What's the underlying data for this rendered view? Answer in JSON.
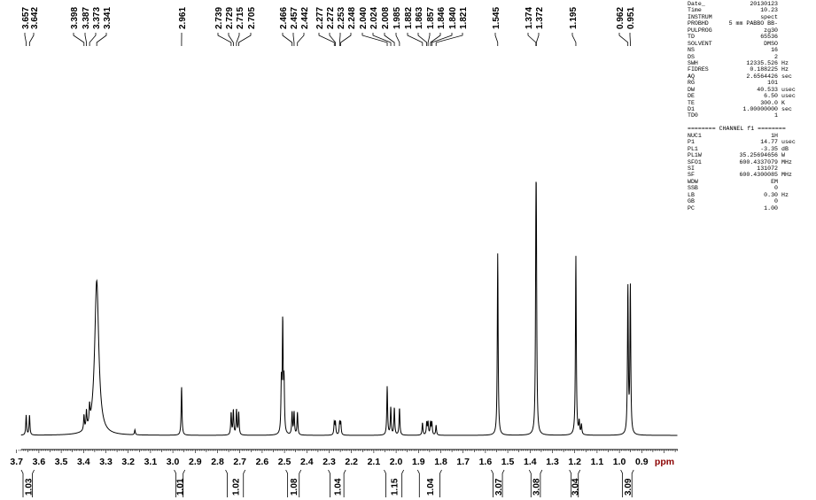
{
  "chart_data": {
    "type": "line",
    "title": "",
    "xlabel": "ppm",
    "ylabel": "",
    "xlim": [
      3.68,
      0.74
    ],
    "x_reversed": true,
    "grid": false,
    "x_ticks": [
      "3.7",
      "3.6",
      "3.5",
      "3.4",
      "3.3",
      "3.2",
      "3.1",
      "3.0",
      "2.9",
      "2.8",
      "2.7",
      "2.6",
      "2.5",
      "2.4",
      "2.3",
      "2.2",
      "2.1",
      "2.0",
      "1.9",
      "1.8",
      "1.7",
      "1.6",
      "1.5",
      "1.4",
      "1.3",
      "1.2",
      "1.1",
      "1.0",
      "0.9"
    ],
    "peak_labels": [
      "3.657",
      "3.642",
      "3.398",
      "3.387",
      "3.373",
      "3.341",
      "2.961",
      "2.739",
      "2.729",
      "2.715",
      "2.705",
      "2.466",
      "2.457",
      "2.442",
      "2.277",
      "2.272",
      "2.253",
      "2.248",
      "2.040",
      "2.024",
      "2.008",
      "1.985",
      "1.882",
      "1.863",
      "1.857",
      "1.846",
      "1.840",
      "1.821",
      "1.545",
      "1.374",
      "1.372",
      "1.195",
      "0.962",
      "0.951"
    ],
    "peaks": [
      {
        "ppm": 3.657,
        "height": 8
      },
      {
        "ppm": 3.642,
        "height": 8
      },
      {
        "ppm": 3.398,
        "height": 6
      },
      {
        "ppm": 3.387,
        "height": 7
      },
      {
        "ppm": 3.373,
        "height": 7
      },
      {
        "ppm": 3.341,
        "height": 62,
        "broad": true
      },
      {
        "ppm": 3.17,
        "height": 2
      },
      {
        "ppm": 2.961,
        "height": 19.5
      },
      {
        "ppm": 2.739,
        "height": 9
      },
      {
        "ppm": 2.729,
        "height": 10
      },
      {
        "ppm": 2.715,
        "height": 10
      },
      {
        "ppm": 2.705,
        "height": 9
      },
      {
        "ppm": 2.514,
        "height": 20
      },
      {
        "ppm": 2.508,
        "height": 44
      },
      {
        "ppm": 2.502,
        "height": 20
      },
      {
        "ppm": 2.466,
        "height": 9
      },
      {
        "ppm": 2.457,
        "height": 9
      },
      {
        "ppm": 2.442,
        "height": 9
      },
      {
        "ppm": 2.277,
        "height": 5
      },
      {
        "ppm": 2.272,
        "height": 5
      },
      {
        "ppm": 2.253,
        "height": 5
      },
      {
        "ppm": 2.248,
        "height": 5
      },
      {
        "ppm": 2.04,
        "height": 19.5
      },
      {
        "ppm": 2.024,
        "height": 11
      },
      {
        "ppm": 2.008,
        "height": 11
      },
      {
        "ppm": 1.985,
        "height": 11
      },
      {
        "ppm": 1.882,
        "height": 5
      },
      {
        "ppm": 1.863,
        "height": 5
      },
      {
        "ppm": 1.857,
        "height": 5
      },
      {
        "ppm": 1.846,
        "height": 5
      },
      {
        "ppm": 1.84,
        "height": 5
      },
      {
        "ppm": 1.821,
        "height": 4
      },
      {
        "ppm": 1.545,
        "height": 73
      },
      {
        "ppm": 1.374,
        "height": 62
      },
      {
        "ppm": 1.372,
        "height": 62
      },
      {
        "ppm": 1.195,
        "height": 72
      },
      {
        "ppm": 1.18,
        "height": 5
      },
      {
        "ppm": 1.17,
        "height": 4
      },
      {
        "ppm": 0.962,
        "height": 59
      },
      {
        "ppm": 0.951,
        "height": 59
      }
    ],
    "integrals": [
      {
        "value": "1.03",
        "range": [
          3.675,
          3.625
        ]
      },
      {
        "value": "1.01",
        "range": [
          2.99,
          2.95
        ]
      },
      {
        "value": "1.02",
        "range": [
          2.76,
          2.68
        ]
      },
      {
        "value": "1.08",
        "range": [
          2.49,
          2.43
        ]
      },
      {
        "value": "1.04",
        "range": [
          2.3,
          2.23
        ]
      },
      {
        "value": "1.15",
        "range": [
          2.05,
          1.97
        ]
      },
      {
        "value": "1.04",
        "range": [
          1.9,
          1.8
        ]
      },
      {
        "value": "3.07",
        "range": [
          1.57,
          1.52
        ]
      },
      {
        "value": "3.08",
        "range": [
          1.4,
          1.35
        ]
      },
      {
        "value": "3.04",
        "range": [
          1.22,
          1.18
        ]
      },
      {
        "value": "3.09",
        "range": [
          0.99,
          0.94
        ]
      }
    ],
    "colors": {
      "spectrum": "#000000",
      "ppm_label": "#8b0000"
    }
  },
  "parameters": [
    [
      "Date_",
      "20130123",
      ""
    ],
    [
      "Time",
      "10.23",
      ""
    ],
    [
      "INSTRUM",
      "spect",
      ""
    ],
    [
      "PROBHD",
      "5 mm PABBO BB-",
      ""
    ],
    [
      "PULPROG",
      "zg30",
      ""
    ],
    [
      "TD",
      "65536",
      ""
    ],
    [
      "SOLVENT",
      "DMSO",
      ""
    ],
    [
      "NS",
      "16",
      ""
    ],
    [
      "DS",
      "2",
      ""
    ],
    [
      "SWH",
      "12335.526",
      "Hz"
    ],
    [
      "FIDRES",
      "0.188225",
      "Hz"
    ],
    [
      "AQ",
      "2.6564426",
      "sec"
    ],
    [
      "RG",
      "101",
      ""
    ],
    [
      "DW",
      "40.533",
      "usec"
    ],
    [
      "DE",
      "6.50",
      "usec"
    ],
    [
      "TE",
      "300.0",
      "K"
    ],
    [
      "D1",
      "1.00000000",
      "sec"
    ],
    [
      "TD0",
      "1",
      ""
    ]
  ],
  "channel_header": "======== CHANNEL f1 ========",
  "channel_parameters": [
    [
      "NUC1",
      "1H",
      ""
    ],
    [
      "P1",
      "14.77",
      "usec"
    ],
    [
      "PL1",
      "-3.35",
      "dB"
    ],
    [
      "PL1W",
      "35.25694656",
      "W"
    ],
    [
      "SFO1",
      "600.4337079",
      "MHz"
    ],
    [
      "SI",
      "131072",
      ""
    ],
    [
      "SF",
      "600.4300085",
      "MHz"
    ],
    [
      "WDW",
      "EM",
      ""
    ],
    [
      "SSB",
      "0",
      ""
    ],
    [
      "LB",
      "0.30",
      "Hz"
    ],
    [
      "GB",
      "0",
      ""
    ],
    [
      "PC",
      "1.00",
      ""
    ]
  ]
}
